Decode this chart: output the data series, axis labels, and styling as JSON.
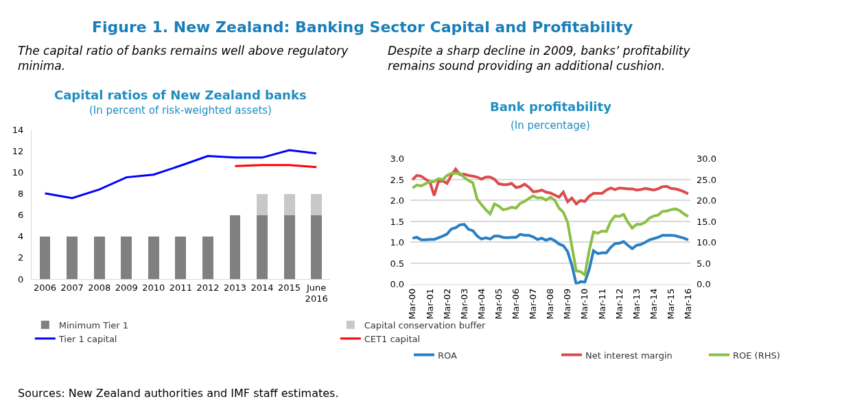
{
  "chart_data": [
    {
      "type": "bar",
      "title": "Capital ratios of New Zealand banks",
      "subtitle": "(In percent of risk-weighted assets)",
      "annotations": [
        "The capital ratio of banks remains well above regulatory minima.",
        "Figure 1. New Zealand: Banking Sector Capital and Profitability",
        "Sources: New Zealand authorities and IMF staff estimates."
      ],
      "categories": [
        "2006",
        "2007",
        "2008",
        "2009",
        "2010",
        "2011",
        "2012",
        "2013",
        "2014",
        "2015",
        "June 2016"
      ],
      "stacked": true,
      "series": [
        {
          "name": "Minimum Tier 1",
          "color": "#808080",
          "values": [
            4,
            4,
            4,
            4,
            4,
            4,
            4,
            6,
            6,
            6,
            6
          ]
        },
        {
          "name": "Capital conservation buffer",
          "color": "#c8c8c8",
          "values": [
            null,
            null,
            null,
            null,
            null,
            null,
            null,
            null,
            2,
            2,
            2
          ]
        },
        {
          "name": "Tier 1 capital",
          "type": "line",
          "color": "#0000ff",
          "values": [
            8.05,
            7.6,
            8.4,
            9.55,
            9.8,
            10.65,
            11.55,
            11.4,
            11.4,
            12.1,
            11.8
          ]
        },
        {
          "name": "CET1 capital",
          "type": "line",
          "color": "#ff0000",
          "values": [
            null,
            null,
            null,
            null,
            null,
            null,
            null,
            10.6,
            10.7,
            10.7,
            10.5
          ]
        }
      ],
      "ylim": [
        0,
        14
      ],
      "yticks": [
        0,
        2,
        4,
        6,
        8,
        10,
        12,
        14
      ],
      "grid": false,
      "legend": "bottom"
    },
    {
      "type": "line",
      "title": "Bank profitability",
      "subtitle": "(In percentage)",
      "annotations": [
        "Despite a sharp decline in 2009, banks’ profitability remains sound providing an additional cushion."
      ],
      "categories": [
        "Mar-00",
        null,
        null,
        null,
        "Mar-01",
        null,
        null,
        null,
        "Mar-02",
        null,
        null,
        null,
        "Mar-03",
        null,
        null,
        null,
        "Mar-04",
        null,
        null,
        null,
        "Mar-05",
        null,
        null,
        null,
        "Mar-06",
        null,
        null,
        null,
        "Mar-07",
        null,
        null,
        null,
        "Mar-08",
        null,
        null,
        null,
        "Mar-09",
        null,
        null,
        null,
        "Mar-10",
        null,
        null,
        null,
        "Mar-11",
        null,
        null,
        null,
        "Mar-12",
        null,
        null,
        null,
        "Mar-13",
        null,
        null,
        null,
        "Mar-14",
        null,
        null,
        null,
        "Mar-15",
        null,
        null,
        null,
        "Mar-16"
      ],
      "series": [
        {
          "name": "ROA",
          "color": "#2a7fc3",
          "values": [
            1.1,
            1.12,
            1.06,
            1.06,
            1.07,
            1.07,
            1.11,
            1.15,
            1.2,
            1.32,
            1.35,
            1.42,
            1.43,
            1.31,
            1.28,
            1.15,
            1.08,
            1.11,
            1.08,
            1.15,
            1.15,
            1.12,
            1.11,
            1.12,
            1.12,
            1.19,
            1.17,
            1.17,
            1.13,
            1.07,
            1.1,
            1.05,
            1.09,
            1.04,
            0.96,
            0.92,
            0.78,
            0.45,
            0.0,
            0.06,
            0.05,
            0.35,
            0.8,
            0.73,
            0.75,
            0.75,
            0.88,
            0.97,
            0.98,
            1.02,
            0.93,
            0.85,
            0.93,
            0.95,
            1.0,
            1.06,
            1.09,
            1.12,
            1.17,
            1.17,
            1.17,
            1.16,
            1.13,
            1.1,
            1.06
          ]
        },
        {
          "name": "Net interest margin",
          "color": "#dc4b4b",
          "values": [
            2.5,
            2.6,
            2.58,
            2.51,
            2.45,
            2.12,
            2.45,
            2.47,
            2.41,
            2.6,
            2.75,
            2.62,
            2.63,
            2.6,
            2.58,
            2.56,
            2.51,
            2.56,
            2.56,
            2.51,
            2.4,
            2.38,
            2.38,
            2.41,
            2.31,
            2.33,
            2.39,
            2.32,
            2.21,
            2.22,
            2.25,
            2.2,
            2.18,
            2.13,
            2.08,
            2.2,
            1.97,
            2.06,
            1.92,
            2.0,
            1.98,
            2.1,
            2.17,
            2.17,
            2.17,
            2.25,
            2.3,
            2.26,
            2.3,
            2.29,
            2.28,
            2.28,
            2.25,
            2.26,
            2.29,
            2.27,
            2.25,
            2.28,
            2.33,
            2.34,
            2.29,
            2.28,
            2.25,
            2.21,
            2.16
          ]
        },
        {
          "name": "ROE (RHS)",
          "axis": "y2",
          "color": "#8cbf45",
          "values": [
            23.0,
            23.7,
            23.5,
            24.0,
            24.5,
            24.5,
            25.2,
            25.0,
            26.0,
            26.5,
            26.5,
            26.5,
            25.5,
            24.8,
            24.2,
            20.3,
            19.0,
            17.8,
            16.8,
            19.2,
            18.7,
            17.8,
            18.0,
            18.4,
            18.2,
            19.3,
            19.8,
            20.5,
            21.1,
            20.6,
            20.7,
            20.1,
            20.8,
            20.1,
            18.2,
            17.2,
            14.8,
            9.0,
            3.2,
            3.0,
            2.2,
            8.0,
            12.5,
            12.2,
            12.7,
            12.6,
            15.0,
            16.3,
            16.2,
            16.7,
            14.8,
            13.4,
            14.3,
            14.3,
            14.8,
            15.8,
            16.3,
            16.5,
            17.4,
            17.5,
            17.8,
            18.0,
            17.6,
            16.8,
            16.2
          ]
        }
      ],
      "ylim": [
        0,
        3
      ],
      "yticks": [
        {
          "value": 0,
          "label": "0.0"
        },
        {
          "value": 0.5,
          "label": "0.5"
        },
        {
          "value": 1,
          "label": "1.0"
        },
        {
          "value": 1.5,
          "label": "1.5"
        },
        {
          "value": 2,
          "label": "2.0"
        },
        {
          "value": 2.5,
          "label": "2.5"
        },
        {
          "value": 3,
          "label": "3.0"
        }
      ],
      "y2lim": [
        0,
        30
      ],
      "y2ticks": [
        {
          "value": 0,
          "label": "0.0"
        },
        {
          "value": 5,
          "label": "5.0"
        },
        {
          "value": 10,
          "label": "10.0"
        },
        {
          "value": 15,
          "label": "15.0"
        },
        {
          "value": 20,
          "label": "20.0"
        },
        {
          "value": 25,
          "label": "25.0"
        },
        {
          "value": 30,
          "label": "30.0"
        }
      ],
      "grid": "y",
      "legend": "bottom"
    }
  ]
}
